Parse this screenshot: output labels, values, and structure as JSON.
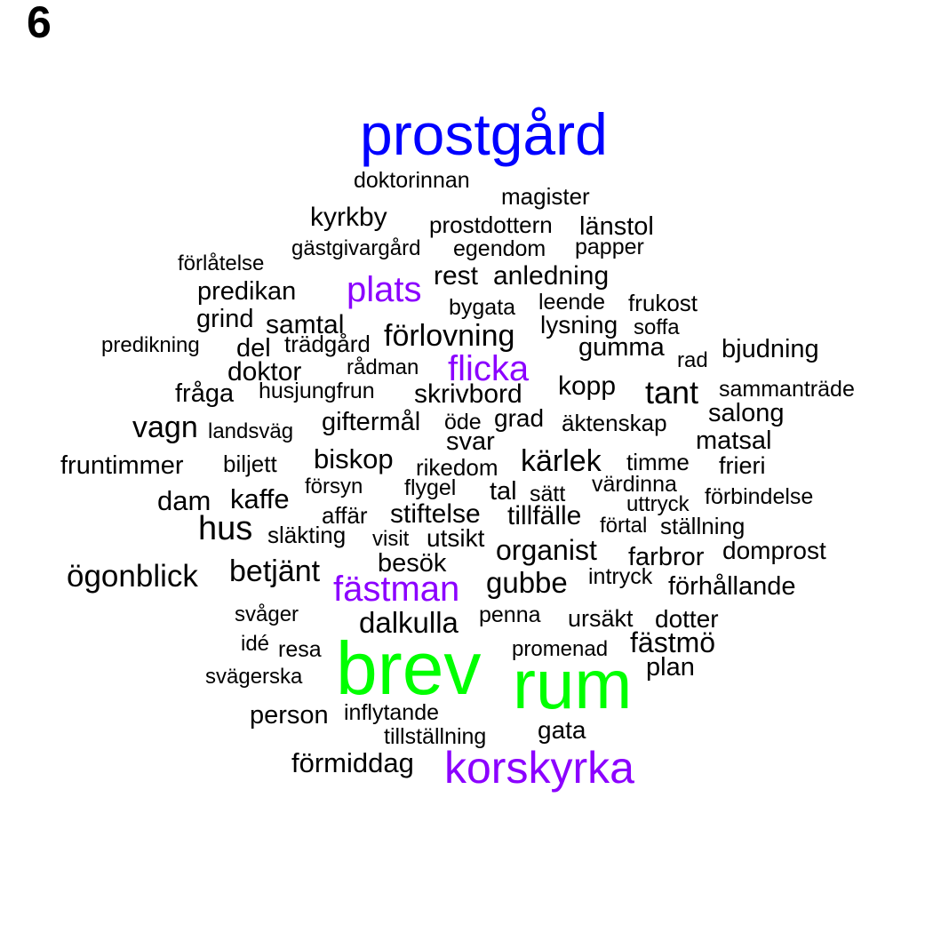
{
  "panel_label": "6",
  "colors": {
    "default": "#000000",
    "blue": "#0000ff",
    "green": "#00ff00",
    "purple": "#8b00ff"
  },
  "words": [
    {
      "text": "prostgård",
      "color": "blue"
    },
    {
      "text": "doktorinnan",
      "color": "default"
    },
    {
      "text": "magister",
      "color": "default"
    },
    {
      "text": "kyrkby",
      "color": "default"
    },
    {
      "text": "prostdottern",
      "color": "default"
    },
    {
      "text": "länstol",
      "color": "default"
    },
    {
      "text": "gästgivargård",
      "color": "default"
    },
    {
      "text": "egendom",
      "color": "default"
    },
    {
      "text": "papper",
      "color": "default"
    },
    {
      "text": "förlåtelse",
      "color": "default"
    },
    {
      "text": "rest",
      "color": "default"
    },
    {
      "text": "anledning",
      "color": "default"
    },
    {
      "text": "predikan",
      "color": "default"
    },
    {
      "text": "plats",
      "color": "purple"
    },
    {
      "text": "leende",
      "color": "default"
    },
    {
      "text": "frukost",
      "color": "default"
    },
    {
      "text": "bygata",
      "color": "default"
    },
    {
      "text": "grind",
      "color": "default"
    },
    {
      "text": "samtal",
      "color": "default"
    },
    {
      "text": "lysning",
      "color": "default"
    },
    {
      "text": "soffa",
      "color": "default"
    },
    {
      "text": "förlovning",
      "color": "default"
    },
    {
      "text": "predikning",
      "color": "default"
    },
    {
      "text": "del",
      "color": "default"
    },
    {
      "text": "trädgård",
      "color": "default"
    },
    {
      "text": "gumma",
      "color": "default"
    },
    {
      "text": "rad",
      "color": "default"
    },
    {
      "text": "bjudning",
      "color": "default"
    },
    {
      "text": "doktor",
      "color": "default"
    },
    {
      "text": "rådman",
      "color": "default"
    },
    {
      "text": "flicka",
      "color": "purple"
    },
    {
      "text": "kopp",
      "color": "default"
    },
    {
      "text": "tant",
      "color": "default"
    },
    {
      "text": "fråga",
      "color": "default"
    },
    {
      "text": "husjungfrun",
      "color": "default"
    },
    {
      "text": "skrivbord",
      "color": "default"
    },
    {
      "text": "sammanträde",
      "color": "default"
    },
    {
      "text": "salong",
      "color": "default"
    },
    {
      "text": "vagn",
      "color": "default"
    },
    {
      "text": "landsväg",
      "color": "default"
    },
    {
      "text": "giftermål",
      "color": "default"
    },
    {
      "text": "öde",
      "color": "default"
    },
    {
      "text": "grad",
      "color": "default"
    },
    {
      "text": "äktenskap",
      "color": "default"
    },
    {
      "text": "svar",
      "color": "default"
    },
    {
      "text": "matsal",
      "color": "default"
    },
    {
      "text": "fruntimmer",
      "color": "default"
    },
    {
      "text": "biljett",
      "color": "default"
    },
    {
      "text": "biskop",
      "color": "default"
    },
    {
      "text": "rikedom",
      "color": "default"
    },
    {
      "text": "kärlek",
      "color": "default"
    },
    {
      "text": "timme",
      "color": "default"
    },
    {
      "text": "frieri",
      "color": "default"
    },
    {
      "text": "försyn",
      "color": "default"
    },
    {
      "text": "flygel",
      "color": "default"
    },
    {
      "text": "tal",
      "color": "default"
    },
    {
      "text": "sätt",
      "color": "default"
    },
    {
      "text": "värdinna",
      "color": "default"
    },
    {
      "text": "dam",
      "color": "default"
    },
    {
      "text": "kaffe",
      "color": "default"
    },
    {
      "text": "uttryck",
      "color": "default"
    },
    {
      "text": "förbindelse",
      "color": "default"
    },
    {
      "text": "affär",
      "color": "default"
    },
    {
      "text": "stiftelse",
      "color": "default"
    },
    {
      "text": "tillfälle",
      "color": "default"
    },
    {
      "text": "hus",
      "color": "default"
    },
    {
      "text": "förtal",
      "color": "default"
    },
    {
      "text": "ställning",
      "color": "default"
    },
    {
      "text": "släkting",
      "color": "default"
    },
    {
      "text": "visit",
      "color": "default"
    },
    {
      "text": "utsikt",
      "color": "default"
    },
    {
      "text": "organist",
      "color": "default"
    },
    {
      "text": "domprost",
      "color": "default"
    },
    {
      "text": "farbror",
      "color": "default"
    },
    {
      "text": "besök",
      "color": "default"
    },
    {
      "text": "ögonblick",
      "color": "default"
    },
    {
      "text": "betjänt",
      "color": "default"
    },
    {
      "text": "fästman",
      "color": "purple"
    },
    {
      "text": "gubbe",
      "color": "default"
    },
    {
      "text": "intryck",
      "color": "default"
    },
    {
      "text": "förhållande",
      "color": "default"
    },
    {
      "text": "svåger",
      "color": "default"
    },
    {
      "text": "penna",
      "color": "default"
    },
    {
      "text": "dalkulla",
      "color": "default"
    },
    {
      "text": "ursäkt",
      "color": "default"
    },
    {
      "text": "dotter",
      "color": "default"
    },
    {
      "text": "idé",
      "color": "default"
    },
    {
      "text": "resa",
      "color": "default"
    },
    {
      "text": "fästmö",
      "color": "default"
    },
    {
      "text": "promenad",
      "color": "default"
    },
    {
      "text": "brev",
      "color": "green"
    },
    {
      "text": "rum",
      "color": "green"
    },
    {
      "text": "plan",
      "color": "default"
    },
    {
      "text": "svägerska",
      "color": "default"
    },
    {
      "text": "person",
      "color": "default"
    },
    {
      "text": "inflytande",
      "color": "default"
    },
    {
      "text": "gata",
      "color": "default"
    },
    {
      "text": "tillställning",
      "color": "default"
    },
    {
      "text": "förmiddag",
      "color": "default"
    },
    {
      "text": "korskyrka",
      "color": "purple"
    }
  ]
}
